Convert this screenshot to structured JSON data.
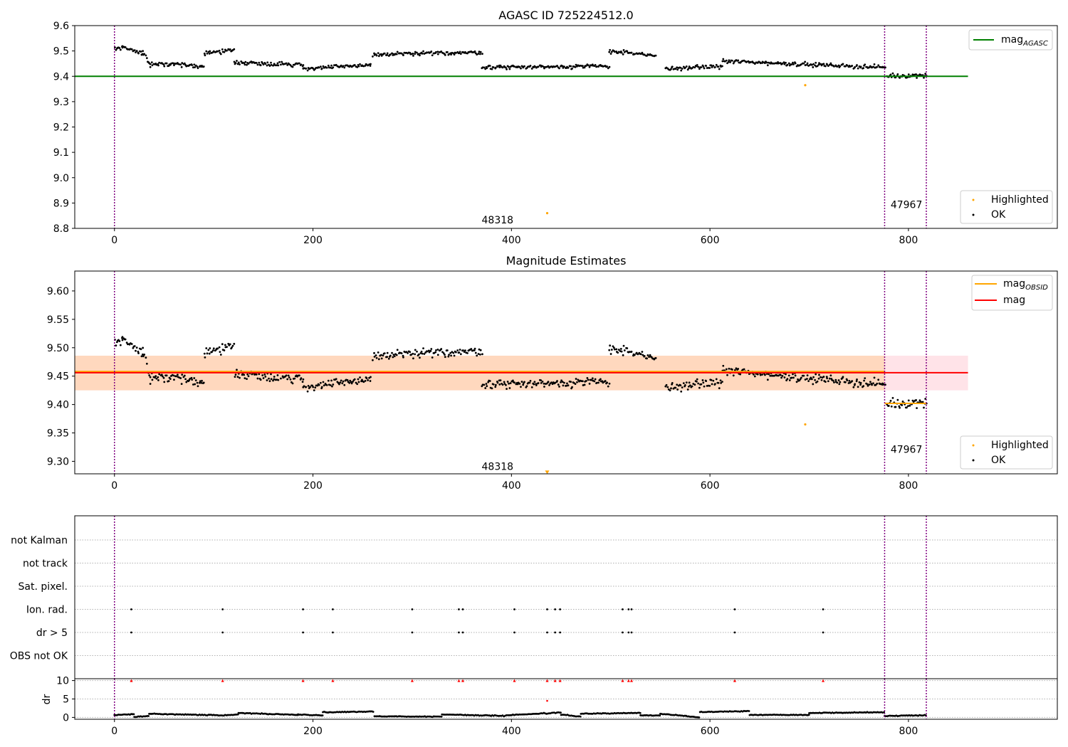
{
  "chart_data": [
    {
      "type": "scatter",
      "title": "AGASC ID 725224512.0",
      "xlim": [
        -40,
        950
      ],
      "ylim": [
        8.8,
        9.6
      ],
      "xticks": [
        0,
        200,
        400,
        600,
        800
      ],
      "yticks": [
        8.8,
        8.9,
        9.0,
        9.1,
        9.2,
        9.3,
        9.4,
        9.5,
        9.6
      ],
      "ytick_labels": [
        "8.8",
        "8.9",
        "9.0",
        "9.1",
        "9.2",
        "9.3",
        "9.4",
        "9.5",
        "9.6"
      ],
      "vlines": [
        0,
        776,
        818
      ],
      "obsid_labels": [
        {
          "x": 370,
          "y": 8.82,
          "text": "48318"
        },
        {
          "x": 782,
          "y": 8.88,
          "text": "47967"
        }
      ],
      "lines": [
        {
          "name": "mag_AGASC",
          "label_main": "mag",
          "label_sub": "AGASC",
          "color": "#008000",
          "x": [
            -40,
            860
          ],
          "y": [
            9.4,
            9.4
          ]
        }
      ],
      "highlighted": [
        {
          "x": 436,
          "y": 8.86
        },
        {
          "x": 696,
          "y": 9.365
        }
      ],
      "legend_top": [
        "mag_AGASC"
      ],
      "legend_bottom": [
        {
          "label": "Highlighted",
          "color": "#FFA500"
        },
        {
          "label": "OK",
          "color": "#000000"
        }
      ],
      "segments": [
        {
          "x0": 0,
          "x1": 8,
          "y0": 9.51,
          "y1": 9.515
        },
        {
          "x0": 8,
          "x1": 28,
          "y0": 9.515,
          "y1": 9.49
        },
        {
          "x0": 28,
          "x1": 36,
          "y0": 9.5,
          "y1": 9.44
        },
        {
          "x0": 36,
          "x1": 90,
          "y0": 9.45,
          "y1": 9.44
        },
        {
          "x0": 90,
          "x1": 120,
          "y0": 9.49,
          "y1": 9.505
        },
        {
          "x0": 120,
          "x1": 190,
          "y0": 9.455,
          "y1": 9.445
        },
        {
          "x0": 190,
          "x1": 258,
          "y0": 9.43,
          "y1": 9.445
        },
        {
          "x0": 260,
          "x1": 370,
          "y0": 9.485,
          "y1": 9.495
        },
        {
          "x0": 370,
          "x1": 498,
          "y0": 9.435,
          "y1": 9.44
        },
        {
          "x0": 498,
          "x1": 545,
          "y0": 9.5,
          "y1": 9.48
        },
        {
          "x0": 555,
          "x1": 612,
          "y0": 9.43,
          "y1": 9.44
        },
        {
          "x0": 612,
          "x1": 776,
          "y0": 9.46,
          "y1": 9.435
        },
        {
          "x0": 778,
          "x1": 818,
          "y0": 9.4,
          "y1": 9.405
        }
      ]
    },
    {
      "type": "scatter",
      "title": "Magnitude Estimates",
      "xlim": [
        -40,
        950
      ],
      "ylim": [
        9.278,
        9.635
      ],
      "xticks": [
        0,
        200,
        400,
        600,
        800
      ],
      "yticks": [
        9.3,
        9.35,
        9.4,
        9.45,
        9.5,
        9.55,
        9.6
      ],
      "ytick_labels": [
        "9.30",
        "9.35",
        "9.40",
        "9.45",
        "9.50",
        "9.55",
        "9.60"
      ],
      "vlines": [
        0,
        776,
        818
      ],
      "obsid_labels": [
        {
          "x": 370,
          "y": 9.285,
          "text": "48318"
        },
        {
          "x": 782,
          "y": 9.315,
          "text": "47967"
        }
      ],
      "bands": [
        {
          "x0": -40,
          "x1": 860,
          "y0": 9.425,
          "y1": 9.486,
          "color": "#FFC0CB",
          "opacity": 0.45
        },
        {
          "x0": -40,
          "x1": 776,
          "y0": 9.425,
          "y1": 9.486,
          "color": "#FFA500",
          "opacity": 0.18
        }
      ],
      "lines": [
        {
          "name": "mag_OBSID",
          "label_main": "mag",
          "label_sub": "OBSID",
          "color": "#FFA500",
          "x": [
            -40,
            776
          ],
          "y": [
            9.458,
            9.458
          ]
        },
        {
          "name": "mag_OBSID_2",
          "label_main": "",
          "label_sub": "",
          "color": "#FFA500",
          "x": [
            776,
            818
          ],
          "y": [
            9.402,
            9.402
          ]
        },
        {
          "name": "mag",
          "label_main": "mag",
          "label_sub": "",
          "color": "#FF0000",
          "x": [
            -40,
            860
          ],
          "y": [
            9.456,
            9.456
          ]
        }
      ],
      "highlighted": [
        {
          "x": 696,
          "y": 9.365
        }
      ],
      "offscale_marker": {
        "x": 436,
        "y": 9.28,
        "color": "#FFA500"
      },
      "legend_top": [
        "mag_OBSID",
        "mag"
      ],
      "legend_bottom": [
        {
          "label": "Highlighted",
          "color": "#FFA500"
        },
        {
          "label": "OK",
          "color": "#000000"
        }
      ],
      "segments": [
        {
          "x0": 0,
          "x1": 8,
          "y0": 9.51,
          "y1": 9.515
        },
        {
          "x0": 8,
          "x1": 28,
          "y0": 9.515,
          "y1": 9.49
        },
        {
          "x0": 28,
          "x1": 36,
          "y0": 9.5,
          "y1": 9.44
        },
        {
          "x0": 36,
          "x1": 90,
          "y0": 9.45,
          "y1": 9.44
        },
        {
          "x0": 90,
          "x1": 120,
          "y0": 9.49,
          "y1": 9.505
        },
        {
          "x0": 120,
          "x1": 190,
          "y0": 9.455,
          "y1": 9.445
        },
        {
          "x0": 190,
          "x1": 258,
          "y0": 9.43,
          "y1": 9.445
        },
        {
          "x0": 260,
          "x1": 370,
          "y0": 9.485,
          "y1": 9.495
        },
        {
          "x0": 370,
          "x1": 498,
          "y0": 9.435,
          "y1": 9.44
        },
        {
          "x0": 498,
          "x1": 545,
          "y0": 9.5,
          "y1": 9.48
        },
        {
          "x0": 555,
          "x1": 612,
          "y0": 9.43,
          "y1": 9.44
        },
        {
          "x0": 612,
          "x1": 776,
          "y0": 9.46,
          "y1": 9.435
        },
        {
          "x0": 778,
          "x1": 818,
          "y0": 9.4,
          "y1": 9.405
        }
      ]
    },
    {
      "type": "scatter",
      "title": "",
      "xlim": [
        -40,
        950
      ],
      "flag_labels": [
        "not Kalman",
        "not track",
        "Sat. pixel.",
        "Ion. rad.",
        "dr > 5",
        "OBS not OK"
      ],
      "flag_events_x": [
        17,
        109,
        190,
        220,
        300,
        347,
        351,
        403,
        436,
        444,
        449,
        512,
        518,
        521,
        625,
        714
      ],
      "flagged_rows": [
        "Ion. rad.",
        "dr > 5"
      ],
      "vlines": [
        0,
        776,
        818
      ]
    },
    {
      "type": "scatter",
      "title": "",
      "xlim": [
        -40,
        950
      ],
      "ylim": [
        -0.5,
        10.5
      ],
      "yticks": [
        0,
        5,
        10
      ],
      "ytick_labels": [
        "0",
        "5",
        "10"
      ],
      "xticks": [
        0,
        200,
        400,
        600,
        800
      ],
      "ylabel": "dr",
      "vlines": [
        0,
        776,
        818
      ],
      "capped_value": 10,
      "capped_x": [
        17,
        109,
        190,
        220,
        300,
        347,
        351,
        403,
        436,
        444,
        449,
        512,
        518,
        521,
        625,
        714
      ],
      "extra_red_points": [
        {
          "x": 436,
          "y": 4.5
        }
      ],
      "baseline_segments": [
        {
          "x0": 0,
          "x1": 20,
          "y0": 0.6,
          "y1": 0.9
        },
        {
          "x0": 20,
          "x1": 35,
          "y0": 0.1,
          "y1": 0.4
        },
        {
          "x0": 35,
          "x1": 105,
          "y0": 1.0,
          "y1": 0.6
        },
        {
          "x0": 105,
          "x1": 125,
          "y0": 0.5,
          "y1": 0.8
        },
        {
          "x0": 125,
          "x1": 185,
          "y0": 1.2,
          "y1": 0.7
        },
        {
          "x0": 185,
          "x1": 210,
          "y0": 0.8,
          "y1": 0.5
        },
        {
          "x0": 210,
          "x1": 262,
          "y0": 1.4,
          "y1": 1.6
        },
        {
          "x0": 262,
          "x1": 330,
          "y0": 0.3,
          "y1": 0.2
        },
        {
          "x0": 330,
          "x1": 395,
          "y0": 0.8,
          "y1": 0.4
        },
        {
          "x0": 395,
          "x1": 450,
          "y0": 0.6,
          "y1": 1.3
        },
        {
          "x0": 450,
          "x1": 470,
          "y0": 0.8,
          "y1": 0.2
        },
        {
          "x0": 470,
          "x1": 530,
          "y0": 1.0,
          "y1": 1.2
        },
        {
          "x0": 530,
          "x1": 550,
          "y0": 0.6,
          "y1": 0.5
        },
        {
          "x0": 550,
          "x1": 590,
          "y0": 1.0,
          "y1": 0.0
        },
        {
          "x0": 590,
          "x1": 640,
          "y0": 1.5,
          "y1": 1.7
        },
        {
          "x0": 640,
          "x1": 700,
          "y0": 0.7,
          "y1": 0.7
        },
        {
          "x0": 700,
          "x1": 776,
          "y0": 1.2,
          "y1": 1.4
        },
        {
          "x0": 776,
          "x1": 818,
          "y0": 0.4,
          "y1": 0.6
        }
      ]
    }
  ]
}
